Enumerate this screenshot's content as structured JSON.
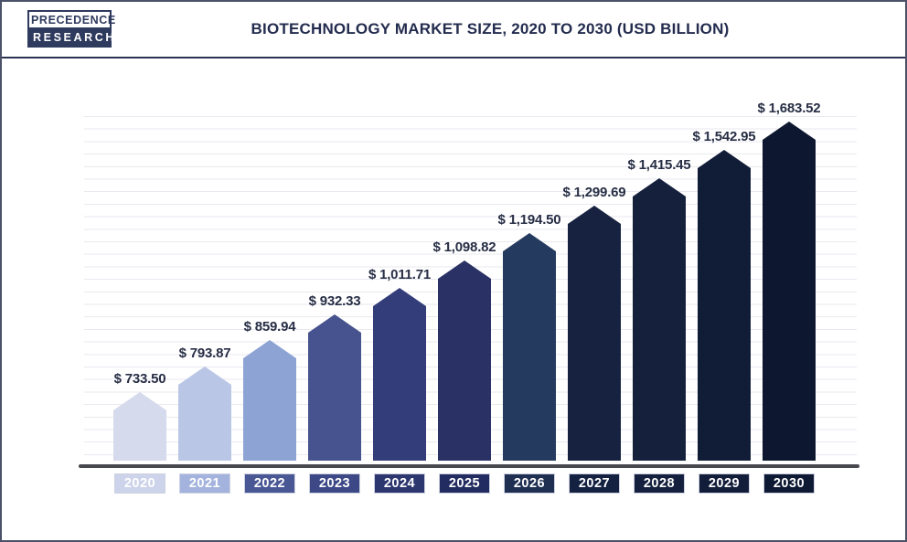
{
  "header": {
    "logo": {
      "line1": "PRECEDENCE",
      "line2": "RESEARCH"
    },
    "title": "BIOTECHNOLOGY MARKET SIZE, 2020 TO 2030 (USD BILLION)"
  },
  "chart_data": {
    "type": "bar",
    "title": "BIOTECHNOLOGY MARKET SIZE, 2020 TO 2030 (USD BILLION)",
    "unit": "USD Billion",
    "categories": [
      "2020",
      "2021",
      "2022",
      "2023",
      "2024",
      "2025",
      "2026",
      "2027",
      "2028",
      "2029",
      "2030"
    ],
    "values": [
      733.5,
      793.87,
      859.94,
      932.33,
      1011.71,
      1098.82,
      1194.5,
      1299.69,
      1415.45,
      1542.95,
      1683.52
    ],
    "value_labels": [
      "$ 733.50",
      "$ 793.87",
      "$ 859.94",
      "$ 932.33",
      "$ 1,011.71",
      "$ 1,098.82",
      "$ 1,194.50",
      "$ 1,299.69",
      "$ 1,415.45",
      "$ 1,542.95",
      "$ 1,683.52"
    ],
    "bar_colors": [
      "#d5daec",
      "#bac6e6",
      "#8da3d4",
      "#47538f",
      "#333d79",
      "#2a3164",
      "#243a5e",
      "#16223f",
      "#15213c",
      "#111c37",
      "#0d1830"
    ],
    "tick_box_colors": [
      "#ccd3ea",
      "#a3b3dd",
      "#4a5795",
      "#3d4987",
      "#2c366f",
      "#232c60",
      "#1f2f52",
      "#152141",
      "#15203e",
      "#121d3a",
      "#0e1933"
    ],
    "xlabel": "",
    "ylabel": "",
    "y_axis_tick_labels_visible": false,
    "legend_position": "none",
    "grid": "horizontal",
    "bar_shape": "pentagon-pointed-top"
  },
  "colors": {
    "title_text": "#232c4e",
    "value_label_text": "#272e45",
    "tick_text": "#ffffff",
    "axis_line": "#47474f",
    "gridline": "#e9eaf0",
    "outer_border": "#4b5268",
    "header_divider": "#2b3352",
    "logo_navy": "#2e3a5e"
  }
}
